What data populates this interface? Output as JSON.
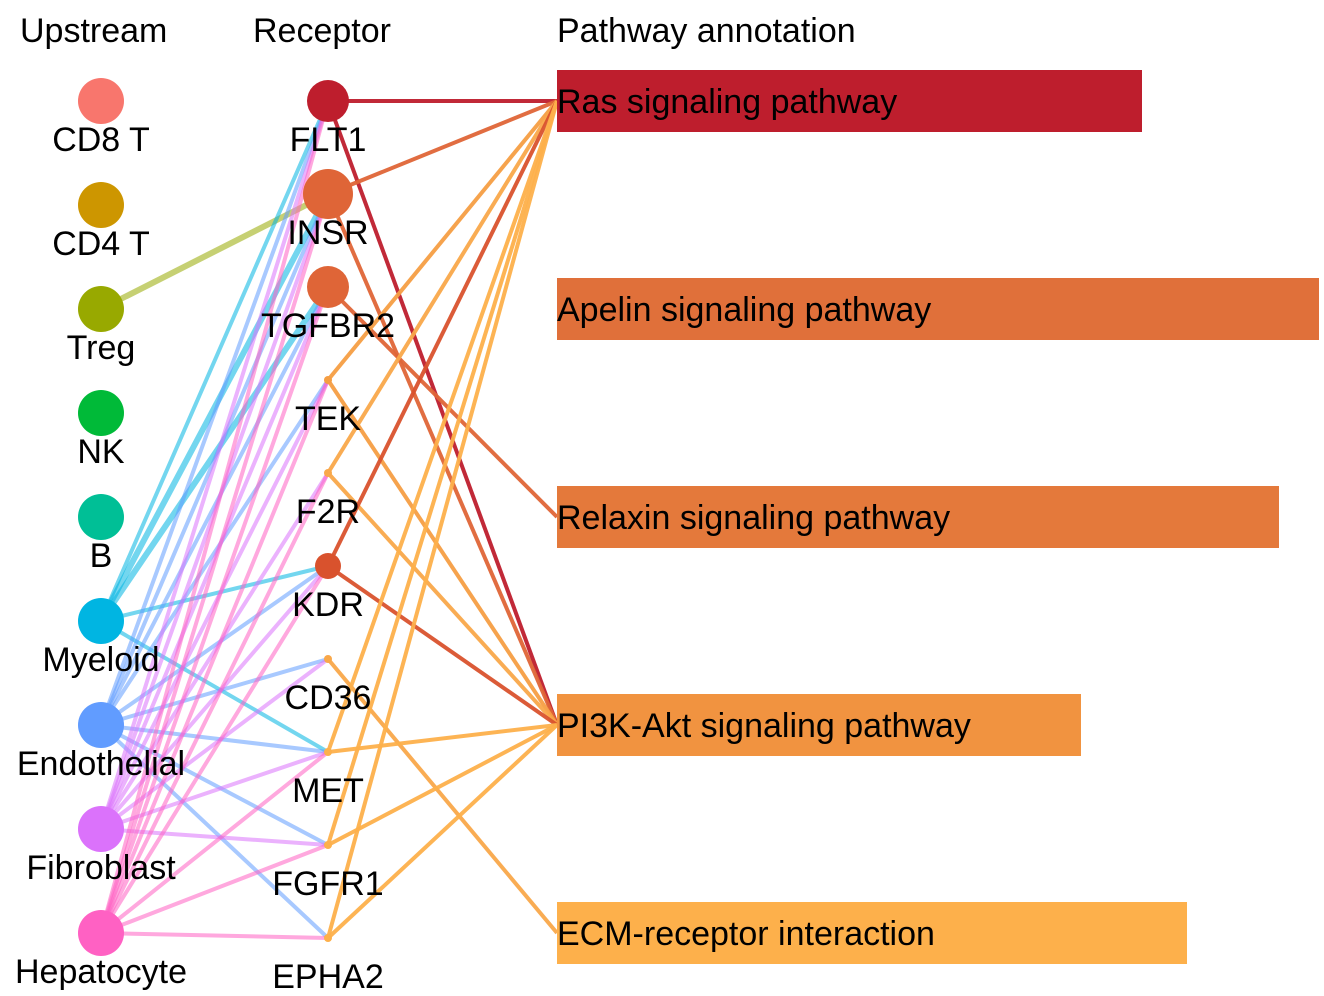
{
  "headers": {
    "upstream": "Upstream",
    "receptor": "Receptor",
    "pathway": "Pathway annotation"
  },
  "upstream": [
    {
      "id": "cd8t",
      "label": "CD8 T",
      "color": "#F8766D"
    },
    {
      "id": "cd4t",
      "label": "CD4 T",
      "color": "#CD9600"
    },
    {
      "id": "treg",
      "label": "Treg",
      "color": "#98A900"
    },
    {
      "id": "nk",
      "label": "NK",
      "color": "#00BA38"
    },
    {
      "id": "b",
      "label": "B",
      "color": "#00BF96"
    },
    {
      "id": "myeloid",
      "label": "Myeloid",
      "color": "#00B5E2"
    },
    {
      "id": "endothelial",
      "label": "Endothelial",
      "color": "#619CFF"
    },
    {
      "id": "fibroblast",
      "label": "Fibroblast",
      "color": "#DB72FB"
    },
    {
      "id": "hepatocyte",
      "label": "Hepatocyte",
      "color": "#FF61C3"
    }
  ],
  "receptors": [
    {
      "id": "flt1",
      "label": "FLT1",
      "color": "#BE1E2D",
      "weight": 3
    },
    {
      "id": "insr",
      "label": "INSR",
      "color": "#DF6537",
      "weight": 4
    },
    {
      "id": "tgfbr2",
      "label": "TGFBR2",
      "color": "#DF6537",
      "weight": 3
    },
    {
      "id": "tek",
      "label": "TEK",
      "color": "#F59E43",
      "weight": 0
    },
    {
      "id": "f2r",
      "label": "F2R",
      "color": "#F9A84A",
      "weight": 0
    },
    {
      "id": "kdr",
      "label": "KDR",
      "color": "#D9522D",
      "weight": 1
    },
    {
      "id": "cd36",
      "label": "CD36",
      "color": "#F9A84A",
      "weight": 0
    },
    {
      "id": "met",
      "label": "MET",
      "color": "#FDB04B",
      "weight": 0
    },
    {
      "id": "fgfr1",
      "label": "FGFR1",
      "color": "#FDB04B",
      "weight": 0
    },
    {
      "id": "epha2",
      "label": "EPHA2",
      "color": "#FDB04B",
      "weight": 0
    }
  ],
  "pathways": [
    {
      "id": "ras",
      "label": "Ras signaling pathway",
      "color": "#BE1E2D",
      "value": 585
    },
    {
      "id": "apelin",
      "label": "Apelin signaling pathway",
      "color": "#E0703A",
      "value": 762
    },
    {
      "id": "relaxin",
      "label": "Relaxin signaling pathway",
      "color": "#E4793B",
      "value": 722
    },
    {
      "id": "pi3k",
      "label": "PI3K-Akt signaling pathway",
      "color": "#F19340",
      "value": 524
    },
    {
      "id": "ecm",
      "label": "ECM-receptor interaction",
      "color": "#FDB04B",
      "value": 630
    }
  ],
  "upstream_links": [
    {
      "from": "treg",
      "to": "insr",
      "color": "#98A900"
    },
    {
      "from": "myeloid",
      "to": "flt1",
      "color": "#00B5E2"
    },
    {
      "from": "myeloid",
      "to": "insr",
      "color": "#00B5E2"
    },
    {
      "from": "myeloid",
      "to": "tgfbr2",
      "color": "#00B5E2"
    },
    {
      "from": "myeloid",
      "to": "kdr",
      "color": "#00B5E2"
    },
    {
      "from": "myeloid",
      "to": "met",
      "color": "#00B5E2"
    },
    {
      "from": "endothelial",
      "to": "flt1",
      "color": "#619CFF"
    },
    {
      "from": "endothelial",
      "to": "insr",
      "color": "#619CFF"
    },
    {
      "from": "endothelial",
      "to": "tgfbr2",
      "color": "#619CFF"
    },
    {
      "from": "endothelial",
      "to": "tek",
      "color": "#619CFF"
    },
    {
      "from": "endothelial",
      "to": "kdr",
      "color": "#619CFF"
    },
    {
      "from": "endothelial",
      "to": "cd36",
      "color": "#619CFF"
    },
    {
      "from": "endothelial",
      "to": "met",
      "color": "#619CFF"
    },
    {
      "from": "endothelial",
      "to": "fgfr1",
      "color": "#619CFF"
    },
    {
      "from": "endothelial",
      "to": "epha2",
      "color": "#619CFF"
    },
    {
      "from": "fibroblast",
      "to": "flt1",
      "color": "#DB72FB"
    },
    {
      "from": "fibroblast",
      "to": "insr",
      "color": "#DB72FB"
    },
    {
      "from": "fibroblast",
      "to": "tgfbr2",
      "color": "#DB72FB"
    },
    {
      "from": "fibroblast",
      "to": "tek",
      "color": "#DB72FB"
    },
    {
      "from": "fibroblast",
      "to": "f2r",
      "color": "#DB72FB"
    },
    {
      "from": "fibroblast",
      "to": "kdr",
      "color": "#DB72FB"
    },
    {
      "from": "fibroblast",
      "to": "cd36",
      "color": "#DB72FB"
    },
    {
      "from": "fibroblast",
      "to": "met",
      "color": "#DB72FB"
    },
    {
      "from": "fibroblast",
      "to": "fgfr1",
      "color": "#DB72FB"
    },
    {
      "from": "hepatocyte",
      "to": "flt1",
      "color": "#FF61C3"
    },
    {
      "from": "hepatocyte",
      "to": "insr",
      "color": "#FF61C3"
    },
    {
      "from": "hepatocyte",
      "to": "tgfbr2",
      "color": "#FF61C3"
    },
    {
      "from": "hepatocyte",
      "to": "tek",
      "color": "#FF61C3"
    },
    {
      "from": "hepatocyte",
      "to": "f2r",
      "color": "#FF61C3"
    },
    {
      "from": "hepatocyte",
      "to": "kdr",
      "color": "#FF61C3"
    },
    {
      "from": "hepatocyte",
      "to": "met",
      "color": "#FF61C3"
    },
    {
      "from": "hepatocyte",
      "to": "fgfr1",
      "color": "#FF61C3"
    },
    {
      "from": "hepatocyte",
      "to": "epha2",
      "color": "#FF61C3"
    }
  ],
  "pathway_links": [
    {
      "from": "flt1",
      "to": "ras",
      "color": "#BE1E2D"
    },
    {
      "from": "flt1",
      "to": "pi3k",
      "color": "#BE1E2D"
    },
    {
      "from": "insr",
      "to": "ras",
      "color": "#DF6537"
    },
    {
      "from": "insr",
      "to": "pi3k",
      "color": "#DF6537"
    },
    {
      "from": "tgfbr2",
      "to": "relaxin",
      "color": "#DF6537"
    },
    {
      "from": "tek",
      "to": "ras",
      "color": "#F59E43"
    },
    {
      "from": "tek",
      "to": "pi3k",
      "color": "#F59E43"
    },
    {
      "from": "f2r",
      "to": "ras",
      "color": "#F9A84A"
    },
    {
      "from": "f2r",
      "to": "pi3k",
      "color": "#F9A84A"
    },
    {
      "from": "kdr",
      "to": "ras",
      "color": "#D9522D"
    },
    {
      "from": "kdr",
      "to": "pi3k",
      "color": "#D9522D"
    },
    {
      "from": "cd36",
      "to": "ecm",
      "color": "#F9A84A"
    },
    {
      "from": "met",
      "to": "ras",
      "color": "#FDB04B"
    },
    {
      "from": "met",
      "to": "pi3k",
      "color": "#FDB04B"
    },
    {
      "from": "fgfr1",
      "to": "ras",
      "color": "#FDB04B"
    },
    {
      "from": "fgfr1",
      "to": "pi3k",
      "color": "#FDB04B"
    },
    {
      "from": "epha2",
      "to": "ras",
      "color": "#FDB04B"
    },
    {
      "from": "epha2",
      "to": "pi3k",
      "color": "#FDB04B"
    }
  ]
}
